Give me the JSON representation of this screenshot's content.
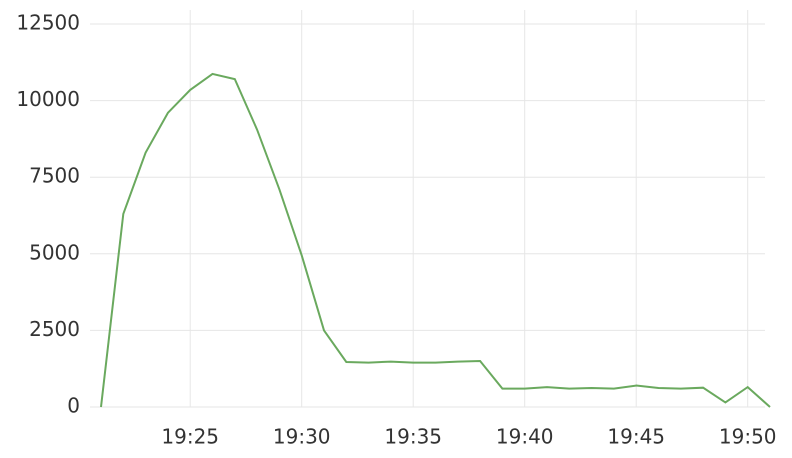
{
  "chart_data": {
    "type": "line",
    "x": [
      "19:21",
      "19:22",
      "19:23",
      "19:24",
      "19:25",
      "19:26",
      "19:27",
      "19:28",
      "19:29",
      "19:30",
      "19:31",
      "19:32",
      "19:33",
      "19:34",
      "19:35",
      "19:36",
      "19:37",
      "19:38",
      "19:39",
      "19:40",
      "19:41",
      "19:42",
      "19:43",
      "19:44",
      "19:45",
      "19:46",
      "19:47",
      "19:48",
      "19:49",
      "19:50",
      "19:51"
    ],
    "series": [
      {
        "color": "#6aa95e",
        "values": [
          0,
          6300,
          8300,
          9600,
          10350,
          10870,
          10700,
          9050,
          7100,
          4950,
          2500,
          1470,
          1450,
          1480,
          1450,
          1450,
          1480,
          1500,
          600,
          600,
          650,
          600,
          620,
          600,
          700,
          620,
          600,
          630,
          150,
          650,
          0
        ]
      }
    ],
    "xlim": [
      "19:21",
      "19:51"
    ],
    "xticks": [
      "19:25",
      "19:30",
      "19:35",
      "19:40",
      "19:45",
      "19:50"
    ],
    "ylim": [
      0,
      12500
    ],
    "yticks": [
      0,
      2500,
      5000,
      7500,
      10000,
      12500
    ],
    "grid": true
  }
}
